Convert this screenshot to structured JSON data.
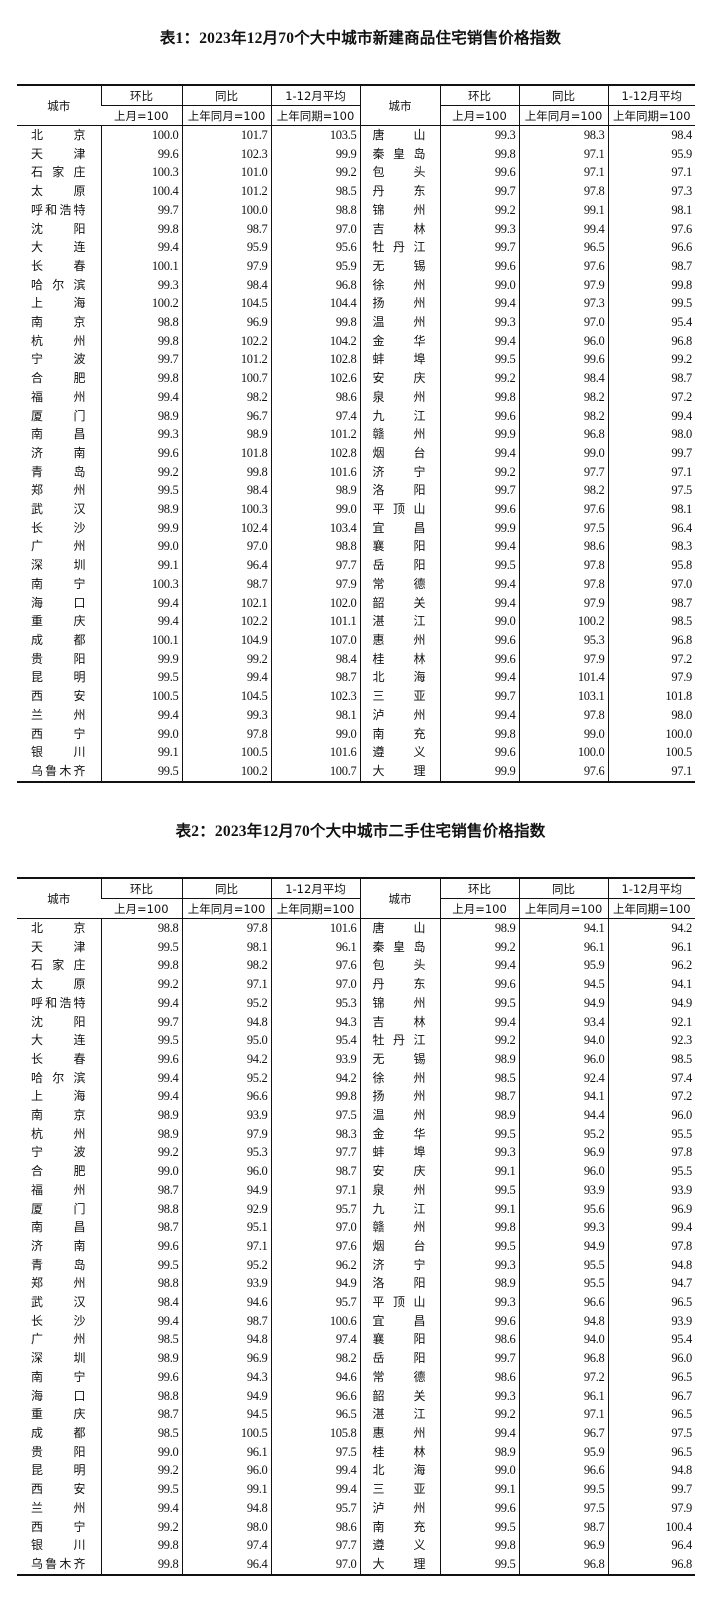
{
  "tables": [
    {
      "title": "表1：2023年12月70个大中城市新建商品住宅销售价格指数",
      "headers": {
        "city": "城市",
        "hb": "环比",
        "hb_sub": "上月=100",
        "tb": "同比",
        "tb_sub": "上年同月=100",
        "avg": "1-12月平均",
        "avg_sub": "上年同期=100"
      },
      "rows": [
        {
          "left": [
            "北京",
            "100.0",
            "101.7",
            "103.5"
          ],
          "right": [
            "唐山",
            "99.3",
            "98.3",
            "98.4"
          ]
        },
        {
          "left": [
            "天津",
            "99.6",
            "102.3",
            "99.9"
          ],
          "right": [
            "秦皇岛",
            "99.8",
            "97.1",
            "95.9"
          ]
        },
        {
          "left": [
            "石家庄",
            "100.3",
            "101.0",
            "99.2"
          ],
          "right": [
            "包头",
            "99.6",
            "97.1",
            "97.1"
          ]
        },
        {
          "left": [
            "太原",
            "100.4",
            "101.2",
            "98.5"
          ],
          "right": [
            "丹东",
            "99.7",
            "97.8",
            "97.3"
          ]
        },
        {
          "left": [
            "呼和浩特",
            "99.7",
            "100.0",
            "98.8"
          ],
          "right": [
            "锦州",
            "99.2",
            "99.1",
            "98.1"
          ]
        },
        {
          "left": [
            "沈阳",
            "99.8",
            "98.7",
            "97.0"
          ],
          "right": [
            "吉林",
            "99.3",
            "99.4",
            "97.6"
          ]
        },
        {
          "left": [
            "大连",
            "99.4",
            "95.9",
            "95.6"
          ],
          "right": [
            "牡丹江",
            "99.7",
            "96.5",
            "96.6"
          ]
        },
        {
          "left": [
            "长春",
            "100.1",
            "97.9",
            "95.9"
          ],
          "right": [
            "无锡",
            "99.6",
            "97.6",
            "98.7"
          ]
        },
        {
          "left": [
            "哈尔滨",
            "99.3",
            "98.4",
            "96.8"
          ],
          "right": [
            "徐州",
            "99.0",
            "97.9",
            "99.8"
          ]
        },
        {
          "left": [
            "上海",
            "100.2",
            "104.5",
            "104.4"
          ],
          "right": [
            "扬州",
            "99.4",
            "97.3",
            "99.5"
          ]
        },
        {
          "left": [
            "南京",
            "98.8",
            "96.9",
            "99.8"
          ],
          "right": [
            "温州",
            "99.3",
            "97.0",
            "95.4"
          ]
        },
        {
          "left": [
            "杭州",
            "99.8",
            "102.2",
            "104.2"
          ],
          "right": [
            "金华",
            "99.4",
            "96.0",
            "96.8"
          ]
        },
        {
          "left": [
            "宁波",
            "99.7",
            "101.2",
            "102.8"
          ],
          "right": [
            "蚌埠",
            "99.5",
            "99.6",
            "99.2"
          ]
        },
        {
          "left": [
            "合肥",
            "99.8",
            "100.7",
            "102.6"
          ],
          "right": [
            "安庆",
            "99.2",
            "98.4",
            "98.7"
          ]
        },
        {
          "left": [
            "福州",
            "99.4",
            "98.2",
            "98.6"
          ],
          "right": [
            "泉州",
            "99.8",
            "98.2",
            "97.2"
          ]
        },
        {
          "left": [
            "厦门",
            "98.9",
            "96.7",
            "97.4"
          ],
          "right": [
            "九江",
            "99.6",
            "98.2",
            "99.4"
          ]
        },
        {
          "left": [
            "南昌",
            "99.3",
            "98.9",
            "101.2"
          ],
          "right": [
            "赣州",
            "99.9",
            "96.8",
            "98.0"
          ]
        },
        {
          "left": [
            "济南",
            "99.6",
            "101.8",
            "102.8"
          ],
          "right": [
            "烟台",
            "99.4",
            "99.0",
            "99.7"
          ]
        },
        {
          "left": [
            "青岛",
            "99.2",
            "99.8",
            "101.6"
          ],
          "right": [
            "济宁",
            "99.2",
            "97.7",
            "97.1"
          ]
        },
        {
          "left": [
            "郑州",
            "99.5",
            "98.4",
            "98.9"
          ],
          "right": [
            "洛阳",
            "99.7",
            "98.2",
            "97.5"
          ]
        },
        {
          "left": [
            "武汉",
            "98.9",
            "100.3",
            "99.0"
          ],
          "right": [
            "平顶山",
            "99.6",
            "97.6",
            "98.1"
          ]
        },
        {
          "left": [
            "长沙",
            "99.9",
            "102.4",
            "103.4"
          ],
          "right": [
            "宜昌",
            "99.9",
            "97.5",
            "96.4"
          ]
        },
        {
          "left": [
            "广州",
            "99.0",
            "97.0",
            "98.8"
          ],
          "right": [
            "襄阳",
            "99.4",
            "98.6",
            "98.3"
          ]
        },
        {
          "left": [
            "深圳",
            "99.1",
            "96.4",
            "97.7"
          ],
          "right": [
            "岳阳",
            "99.5",
            "97.8",
            "95.8"
          ]
        },
        {
          "left": [
            "南宁",
            "100.3",
            "98.7",
            "97.9"
          ],
          "right": [
            "常德",
            "99.4",
            "97.8",
            "97.0"
          ]
        },
        {
          "left": [
            "海口",
            "99.4",
            "102.1",
            "102.0"
          ],
          "right": [
            "韶关",
            "99.4",
            "97.9",
            "98.7"
          ]
        },
        {
          "left": [
            "重庆",
            "99.4",
            "102.2",
            "101.1"
          ],
          "right": [
            "湛江",
            "99.0",
            "100.2",
            "98.5"
          ]
        },
        {
          "left": [
            "成都",
            "100.1",
            "104.9",
            "107.0"
          ],
          "right": [
            "惠州",
            "99.6",
            "95.3",
            "96.8"
          ]
        },
        {
          "left": [
            "贵阳",
            "99.9",
            "99.2",
            "98.4"
          ],
          "right": [
            "桂林",
            "99.6",
            "97.9",
            "97.2"
          ]
        },
        {
          "left": [
            "昆明",
            "99.5",
            "99.4",
            "98.7"
          ],
          "right": [
            "北海",
            "99.4",
            "101.4",
            "97.9"
          ]
        },
        {
          "left": [
            "西安",
            "100.5",
            "104.5",
            "102.3"
          ],
          "right": [
            "三亚",
            "99.7",
            "103.1",
            "101.8"
          ]
        },
        {
          "left": [
            "兰州",
            "99.4",
            "99.3",
            "98.1"
          ],
          "right": [
            "泸州",
            "99.4",
            "97.8",
            "98.0"
          ]
        },
        {
          "left": [
            "西宁",
            "99.0",
            "97.8",
            "99.0"
          ],
          "right": [
            "南充",
            "99.8",
            "99.0",
            "100.0"
          ]
        },
        {
          "left": [
            "银川",
            "99.1",
            "100.5",
            "101.6"
          ],
          "right": [
            "遵义",
            "99.6",
            "100.0",
            "100.5"
          ]
        },
        {
          "left": [
            "乌鲁木齐",
            "99.5",
            "100.2",
            "100.7"
          ],
          "right": [
            "大理",
            "99.9",
            "97.6",
            "97.1"
          ]
        }
      ]
    },
    {
      "title": "表2：2023年12月70个大中城市二手住宅销售价格指数",
      "headers": {
        "city": "城市",
        "hb": "环比",
        "hb_sub": "上月=100",
        "tb": "同比",
        "tb_sub": "上年同月=100",
        "avg": "1-12月平均",
        "avg_sub": "上年同期=100"
      },
      "rows": [
        {
          "left": [
            "北京",
            "98.8",
            "97.8",
            "101.6"
          ],
          "right": [
            "唐山",
            "98.9",
            "94.1",
            "94.2"
          ]
        },
        {
          "left": [
            "天津",
            "99.5",
            "98.1",
            "96.1"
          ],
          "right": [
            "秦皇岛",
            "99.2",
            "96.1",
            "96.1"
          ]
        },
        {
          "left": [
            "石家庄",
            "99.8",
            "98.2",
            "97.6"
          ],
          "right": [
            "包头",
            "99.4",
            "95.9",
            "96.2"
          ]
        },
        {
          "left": [
            "太原",
            "99.2",
            "97.1",
            "97.0"
          ],
          "right": [
            "丹东",
            "99.6",
            "94.5",
            "94.1"
          ]
        },
        {
          "left": [
            "呼和浩特",
            "99.4",
            "95.2",
            "95.3"
          ],
          "right": [
            "锦州",
            "99.5",
            "94.9",
            "94.9"
          ]
        },
        {
          "left": [
            "沈阳",
            "99.7",
            "94.8",
            "94.3"
          ],
          "right": [
            "吉林",
            "99.4",
            "93.4",
            "92.1"
          ]
        },
        {
          "left": [
            "大连",
            "99.5",
            "95.0",
            "95.4"
          ],
          "right": [
            "牡丹江",
            "99.2",
            "94.0",
            "92.3"
          ]
        },
        {
          "left": [
            "长春",
            "99.6",
            "94.2",
            "93.9"
          ],
          "right": [
            "无锡",
            "98.9",
            "96.0",
            "98.5"
          ]
        },
        {
          "left": [
            "哈尔滨",
            "99.4",
            "95.2",
            "94.2"
          ],
          "right": [
            "徐州",
            "98.5",
            "92.4",
            "97.4"
          ]
        },
        {
          "left": [
            "上海",
            "99.4",
            "96.6",
            "99.8"
          ],
          "right": [
            "扬州",
            "98.7",
            "94.1",
            "97.2"
          ]
        },
        {
          "left": [
            "南京",
            "98.9",
            "93.9",
            "97.5"
          ],
          "right": [
            "温州",
            "98.9",
            "94.4",
            "96.0"
          ]
        },
        {
          "left": [
            "杭州",
            "98.9",
            "97.9",
            "98.3"
          ],
          "right": [
            "金华",
            "99.5",
            "95.2",
            "95.5"
          ]
        },
        {
          "left": [
            "宁波",
            "99.2",
            "95.3",
            "97.7"
          ],
          "right": [
            "蚌埠",
            "99.3",
            "96.9",
            "97.8"
          ]
        },
        {
          "left": [
            "合肥",
            "99.0",
            "96.0",
            "98.7"
          ],
          "right": [
            "安庆",
            "99.1",
            "96.0",
            "95.5"
          ]
        },
        {
          "left": [
            "福州",
            "98.7",
            "94.9",
            "97.1"
          ],
          "right": [
            "泉州",
            "99.5",
            "93.9",
            "93.9"
          ]
        },
        {
          "left": [
            "厦门",
            "98.8",
            "92.9",
            "95.7"
          ],
          "right": [
            "九江",
            "99.1",
            "95.6",
            "96.9"
          ]
        },
        {
          "left": [
            "南昌",
            "98.7",
            "95.1",
            "97.0"
          ],
          "right": [
            "赣州",
            "99.8",
            "99.3",
            "99.4"
          ]
        },
        {
          "left": [
            "济南",
            "99.6",
            "97.1",
            "97.6"
          ],
          "right": [
            "烟台",
            "99.5",
            "94.9",
            "97.8"
          ]
        },
        {
          "left": [
            "青岛",
            "99.5",
            "95.2",
            "96.2"
          ],
          "right": [
            "济宁",
            "99.3",
            "95.5",
            "94.8"
          ]
        },
        {
          "left": [
            "郑州",
            "98.8",
            "93.9",
            "94.9"
          ],
          "right": [
            "洛阳",
            "98.9",
            "95.5",
            "94.7"
          ]
        },
        {
          "left": [
            "武汉",
            "98.4",
            "94.6",
            "95.7"
          ],
          "right": [
            "平顶山",
            "99.3",
            "96.6",
            "96.5"
          ]
        },
        {
          "left": [
            "长沙",
            "99.4",
            "98.7",
            "100.6"
          ],
          "right": [
            "宜昌",
            "99.6",
            "94.8",
            "93.9"
          ]
        },
        {
          "left": [
            "广州",
            "98.5",
            "94.8",
            "97.4"
          ],
          "right": [
            "襄阳",
            "98.6",
            "94.0",
            "95.4"
          ]
        },
        {
          "left": [
            "深圳",
            "98.9",
            "96.9",
            "98.2"
          ],
          "right": [
            "岳阳",
            "99.7",
            "96.8",
            "96.0"
          ]
        },
        {
          "left": [
            "南宁",
            "99.6",
            "94.3",
            "94.6"
          ],
          "right": [
            "常德",
            "98.6",
            "97.2",
            "96.5"
          ]
        },
        {
          "left": [
            "海口",
            "98.8",
            "94.9",
            "96.6"
          ],
          "right": [
            "韶关",
            "99.3",
            "96.1",
            "96.7"
          ]
        },
        {
          "left": [
            "重庆",
            "98.7",
            "94.5",
            "96.5"
          ],
          "right": [
            "湛江",
            "99.2",
            "97.1",
            "96.5"
          ]
        },
        {
          "left": [
            "成都",
            "98.5",
            "100.5",
            "105.8"
          ],
          "right": [
            "惠州",
            "99.4",
            "96.7",
            "97.5"
          ]
        },
        {
          "left": [
            "贵阳",
            "99.0",
            "96.1",
            "97.5"
          ],
          "right": [
            "桂林",
            "98.9",
            "95.9",
            "96.5"
          ]
        },
        {
          "left": [
            "昆明",
            "99.2",
            "96.0",
            "99.4"
          ],
          "right": [
            "北海",
            "99.0",
            "96.6",
            "94.8"
          ]
        },
        {
          "left": [
            "西安",
            "99.5",
            "99.1",
            "99.4"
          ],
          "right": [
            "三亚",
            "99.1",
            "99.5",
            "99.7"
          ]
        },
        {
          "left": [
            "兰州",
            "99.4",
            "94.8",
            "95.7"
          ],
          "right": [
            "泸州",
            "99.6",
            "97.5",
            "97.9"
          ]
        },
        {
          "left": [
            "西宁",
            "99.2",
            "98.0",
            "98.6"
          ],
          "right": [
            "南充",
            "99.5",
            "98.7",
            "100.4"
          ]
        },
        {
          "left": [
            "银川",
            "99.8",
            "97.4",
            "97.7"
          ],
          "right": [
            "遵义",
            "99.8",
            "96.9",
            "96.4"
          ]
        },
        {
          "left": [
            "乌鲁木齐",
            "99.8",
            "96.4",
            "97.0"
          ],
          "right": [
            "大理",
            "99.5",
            "96.8",
            "96.8"
          ]
        }
      ]
    }
  ]
}
